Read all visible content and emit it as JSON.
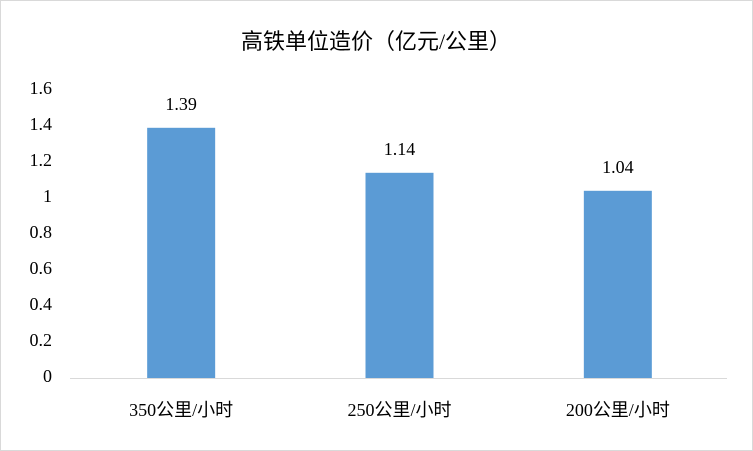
{
  "chart_data": {
    "type": "bar",
    "title": "高铁单位造价（亿元/公里）",
    "categories": [
      "350公里/小时",
      "250公里/小时",
      "200公里/小时"
    ],
    "values": [
      1.39,
      1.14,
      1.04
    ],
    "color": "#5b9bd5",
    "ylim": [
      0,
      1.6
    ],
    "yticks": [
      0,
      0.2,
      0.4,
      0.6,
      0.8,
      1,
      1.2,
      1.4,
      1.6
    ],
    "grid": false
  }
}
